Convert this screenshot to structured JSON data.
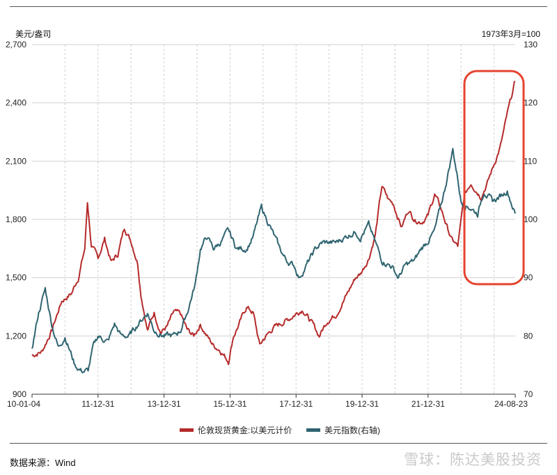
{
  "header": {
    "unit_left": "美元/盎司",
    "unit_right": "1973年3月=100"
  },
  "footer": {
    "source": "数据来源：Wind",
    "watermark": "雪球：陈达美股投资"
  },
  "colors": {
    "gold": "#b52a2a",
    "usd": "#2f6470",
    "highlight": "#e6432f",
    "grid": "#cfcfcf"
  },
  "chart_data": {
    "type": "line",
    "title": "",
    "x_tick_labels": [
      "10-01-04",
      "11-12-31",
      "13-12-31",
      "15-12-31",
      "17-12-31",
      "19-12-31",
      "21-12-31",
      "24-08-23"
    ],
    "x_range": [
      "2010-01-04",
      "2024-08-23"
    ],
    "grid": true,
    "legend_position": "bottom",
    "y_left": {
      "range": [
        900,
        2700
      ],
      "ticks": [
        "900",
        "1,200",
        "1,500",
        "1,800",
        "2,100",
        "2,400",
        "2,700"
      ]
    },
    "y_right": {
      "range": [
        70,
        130
      ],
      "ticks": [
        "70",
        "80",
        "90",
        "100",
        "110",
        "120",
        "130"
      ]
    },
    "series": [
      {
        "name": "伦敦现货黄金:以美元计价",
        "axis": "left",
        "x": [
          2010.0,
          2010.3,
          2010.6,
          2010.9,
          2011.2,
          2011.4,
          2011.6,
          2011.68,
          2011.8,
          2012.0,
          2012.2,
          2012.4,
          2012.6,
          2012.8,
          2013.0,
          2013.2,
          2013.3,
          2013.5,
          2013.7,
          2013.9,
          2014.1,
          2014.3,
          2014.5,
          2014.7,
          2014.9,
          2015.1,
          2015.3,
          2015.5,
          2015.7,
          2015.95,
          2016.1,
          2016.3,
          2016.5,
          2016.7,
          2016.9,
          2017.0,
          2017.3,
          2017.6,
          2017.8,
          2017.95,
          2018.2,
          2018.5,
          2018.7,
          2018.95,
          2019.2,
          2019.5,
          2019.8,
          2019.95,
          2020.2,
          2020.4,
          2020.6,
          2020.8,
          2020.95,
          2021.2,
          2021.4,
          2021.6,
          2021.8,
          2022.0,
          2022.2,
          2022.4,
          2022.7,
          2022.9,
          2023.1,
          2023.3,
          2023.6,
          2023.8,
          2023.95,
          2024.2,
          2024.4,
          2024.64
        ],
        "y": [
          1100,
          1120,
          1230,
          1380,
          1420,
          1500,
          1650,
          1890,
          1660,
          1600,
          1700,
          1580,
          1620,
          1760,
          1690,
          1580,
          1420,
          1230,
          1320,
          1220,
          1250,
          1320,
          1310,
          1230,
          1200,
          1260,
          1200,
          1150,
          1130,
          1070,
          1200,
          1270,
          1350,
          1320,
          1150,
          1180,
          1240,
          1270,
          1290,
          1310,
          1340,
          1260,
          1200,
          1280,
          1310,
          1400,
          1500,
          1520,
          1600,
          1720,
          1970,
          1900,
          1880,
          1760,
          1850,
          1800,
          1790,
          1820,
          1930,
          1850,
          1700,
          1660,
          1920,
          1990,
          1920,
          1990,
          2060,
          2180,
          2340,
          2510
        ]
      },
      {
        "name": "美元指数(右轴)",
        "axis": "right",
        "x": [
          2010.0,
          2010.2,
          2010.4,
          2010.6,
          2010.8,
          2011.0,
          2011.3,
          2011.5,
          2011.7,
          2011.85,
          2012.0,
          2012.3,
          2012.5,
          2012.7,
          2012.95,
          2013.2,
          2013.5,
          2013.7,
          2014.0,
          2014.3,
          2014.5,
          2014.7,
          2014.95,
          2015.1,
          2015.3,
          2015.5,
          2015.7,
          2015.95,
          2016.2,
          2016.5,
          2016.7,
          2016.95,
          2017.2,
          2017.5,
          2017.7,
          2017.95,
          2018.1,
          2018.3,
          2018.6,
          2018.8,
          2018.95,
          2019.2,
          2019.5,
          2019.8,
          2019.95,
          2020.2,
          2020.4,
          2020.6,
          2020.9,
          2021.1,
          2021.3,
          2021.6,
          2021.8,
          2021.95,
          2022.2,
          2022.5,
          2022.75,
          2022.9,
          2023.0,
          2023.3,
          2023.5,
          2023.7,
          2023.95,
          2024.2,
          2024.4,
          2024.64
        ],
        "y": [
          78,
          84,
          88,
          82,
          78,
          80,
          75,
          74,
          74,
          78,
          80,
          79,
          82,
          80,
          80,
          82,
          84,
          81,
          80,
          80,
          81,
          84,
          89,
          95,
          97,
          95,
          96,
          98,
          95,
          95,
          97,
          102,
          99,
          95,
          93,
          92,
          90,
          92,
          95,
          96,
          96,
          96,
          97,
          98,
          97,
          99,
          96,
          93,
          92,
          90,
          92,
          93,
          95,
          96,
          98,
          105,
          112,
          107,
          103,
          102,
          101,
          105,
          103,
          104,
          105,
          101
        ]
      }
    ]
  }
}
